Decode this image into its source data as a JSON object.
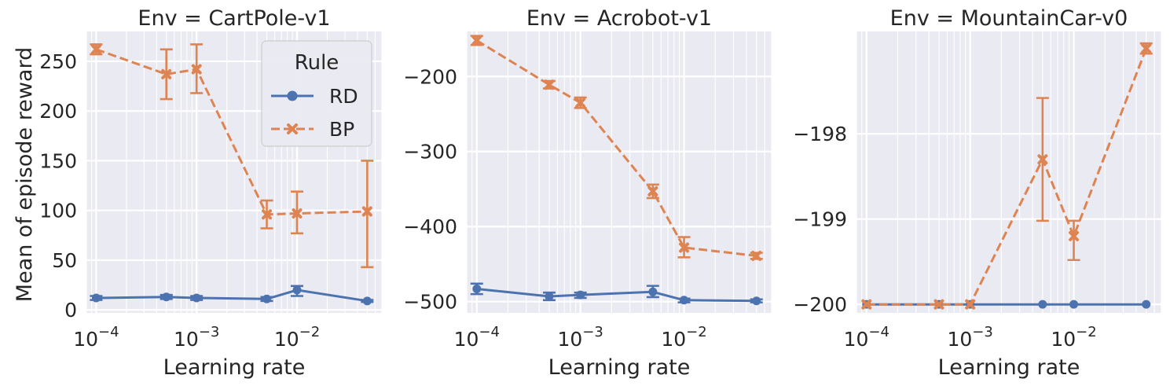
{
  "figure": {
    "ylabel": "Mean of episode reward",
    "legend": {
      "title": "Rule",
      "placement": "upper-right of first panel",
      "entries": [
        {
          "name": "RD",
          "color": "#4c72b0",
          "marker": "circle",
          "linestyle": "solid"
        },
        {
          "name": "BP",
          "color": "#dd8452",
          "marker": "x",
          "linestyle": "dashed"
        }
      ]
    },
    "style": {
      "background": "#eaeaf2",
      "grid": true,
      "grid_color": "#ffffff"
    }
  },
  "chart_data": [
    {
      "type": "line",
      "title": "Env = CartPole-v1",
      "xlabel": "Learning rate",
      "ylabel": "Mean of episode reward",
      "xscale": "log",
      "xlim": [
        8e-05,
        0.07
      ],
      "ylim": [
        -3,
        280
      ],
      "yticks": [
        0,
        50,
        100,
        150,
        200,
        250
      ],
      "ytick_labels": [
        "0",
        "50",
        "100",
        "150",
        "200",
        "250"
      ],
      "xticks": [
        0.0001,
        0.001,
        0.01
      ],
      "xtick_labels": [
        [
          "10",
          "−4"
        ],
        [
          "10",
          "−3"
        ],
        [
          "10",
          "−2"
        ]
      ],
      "x": [
        0.0001,
        0.0005,
        0.001,
        0.005,
        0.01,
        0.05
      ],
      "series": [
        {
          "name": "RD",
          "values": [
            12,
            13,
            12,
            11,
            20,
            9
          ],
          "err_low": [
            10,
            11,
            10,
            9,
            14,
            8
          ],
          "err_high": [
            14,
            15,
            14,
            13,
            24,
            10
          ]
        },
        {
          "name": "BP",
          "values": [
            262,
            237,
            242,
            96,
            97,
            99
          ],
          "err_low": [
            257,
            212,
            218,
            82,
            77,
            43
          ],
          "err_high": [
            267,
            262,
            267,
            110,
            119,
            150
          ]
        }
      ]
    },
    {
      "type": "line",
      "title": "Env = Acrobot-v1",
      "xlabel": "Learning rate",
      "xscale": "log",
      "xlim": [
        8e-05,
        0.07
      ],
      "ylim": [
        -515,
        -140
      ],
      "yticks": [
        -500,
        -400,
        -300,
        -200
      ],
      "ytick_labels": [
        "−500",
        "−400",
        "−300",
        "−200"
      ],
      "xticks": [
        0.0001,
        0.001,
        0.01
      ],
      "xtick_labels": [
        [
          "10",
          "−4"
        ],
        [
          "10",
          "−3"
        ],
        [
          "10",
          "−2"
        ]
      ],
      "x": [
        0.0001,
        0.0005,
        0.001,
        0.005,
        0.01,
        0.05
      ],
      "series": [
        {
          "name": "RD",
          "values": [
            -483,
            -493,
            -491,
            -487,
            -498,
            -499
          ],
          "err_low": [
            -490,
            -498,
            -495,
            -494,
            -501,
            -501
          ],
          "err_high": [
            -476,
            -488,
            -488,
            -479,
            -496,
            -497
          ]
        },
        {
          "name": "BP",
          "values": [
            -152,
            -211,
            -235,
            -353,
            -428,
            -439
          ],
          "err_low": [
            -158,
            -216,
            -242,
            -362,
            -441,
            -443
          ],
          "err_high": [
            -146,
            -206,
            -228,
            -344,
            -414,
            -435
          ]
        }
      ]
    },
    {
      "type": "line",
      "title": "Env = MountainCar-v0",
      "xlabel": "Learning rate",
      "xscale": "log",
      "xlim": [
        8e-05,
        0.07
      ],
      "ylim": [
        -200.1,
        -196.8
      ],
      "yticks": [
        -200,
        -199,
        -198
      ],
      "ytick_labels": [
        "−200",
        "−199",
        "−198"
      ],
      "xticks": [
        0.0001,
        0.001,
        0.01
      ],
      "xtick_labels": [
        [
          "10",
          "−4"
        ],
        [
          "10",
          "−3"
        ],
        [
          "10",
          "−2"
        ]
      ],
      "x": [
        0.0001,
        0.0005,
        0.001,
        0.005,
        0.01,
        0.05
      ],
      "series": [
        {
          "name": "RD",
          "values": [
            -200,
            -200,
            -200,
            -200,
            -200,
            -200
          ],
          "err_low": [
            -200,
            -200,
            -200,
            -200,
            -200,
            -200
          ],
          "err_high": [
            -200,
            -200,
            -200,
            -200,
            -200,
            -200
          ]
        },
        {
          "name": "BP",
          "values": [
            -200,
            -200,
            -200,
            -198.3,
            -199.2,
            -197.0
          ],
          "err_low": [
            -200,
            -200,
            -200,
            -199.02,
            -199.48,
            -197.06
          ],
          "err_high": [
            -200,
            -200,
            -200,
            -197.58,
            -199.02,
            -196.94
          ]
        }
      ]
    }
  ]
}
